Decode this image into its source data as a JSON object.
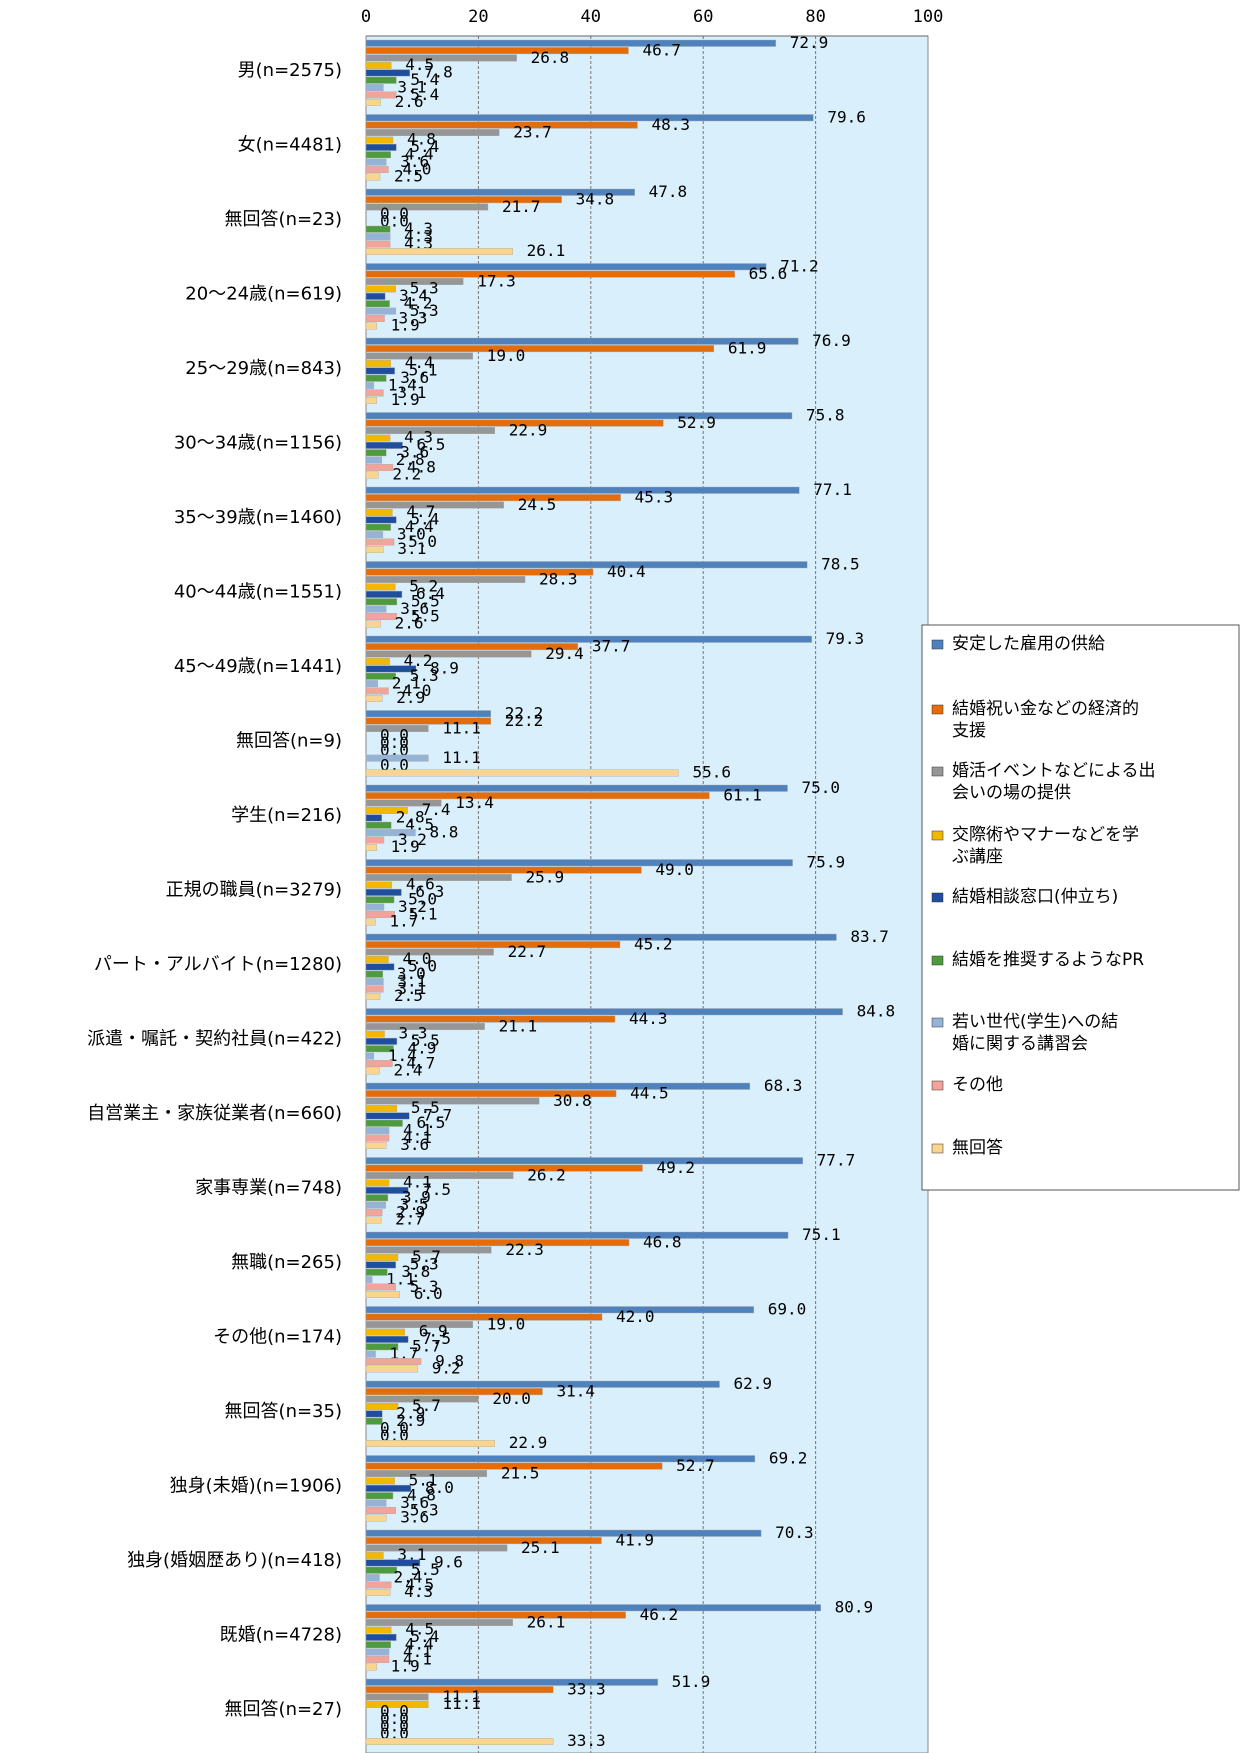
{
  "chart_data": {
    "type": "bar",
    "orientation": "horizontal",
    "xlim": [
      0,
      100
    ],
    "xticks": [
      "0",
      "20",
      "40",
      "60",
      "80",
      "100"
    ],
    "grid": true,
    "legend_position": "right",
    "categories": [
      "男(n=2575)",
      "女(n=4481)",
      "無回答(n=23)",
      "20～24歳(n=619)",
      "25～29歳(n=843)",
      "30～34歳(n=1156)",
      "35～39歳(n=1460)",
      "40～44歳(n=1551)",
      "45～49歳(n=1441)",
      "無回答(n=9)",
      "学生(n=216)",
      "正規の職員(n=3279)",
      "パート・アルバイト(n=1280)",
      "派遣・嘱託・契約社員(n=422)",
      "自営業主・家族従業者(n=660)",
      "家事専業(n=748)",
      "無職(n=265)",
      "その他(n=174)",
      "無回答(n=35)",
      "独身(未婚)(n=1906)",
      "独身(婚姻歴あり)(n=418)",
      "既婚(n=4728)",
      "無回答(n=27)"
    ],
    "series": [
      {
        "name": "安定した雇用の供給",
        "color": "#4F81BD",
        "values": [
          72.9,
          79.6,
          47.8,
          71.2,
          76.9,
          75.8,
          77.1,
          78.5,
          79.3,
          22.2,
          75.0,
          75.9,
          83.7,
          84.8,
          68.3,
          77.7,
          75.1,
          69.0,
          62.9,
          69.2,
          70.3,
          80.9,
          51.9
        ]
      },
      {
        "name": "結婚祝い金などの経済的支援",
        "color": "#E46C0A",
        "values": [
          46.7,
          48.3,
          34.8,
          65.6,
          61.9,
          52.9,
          45.3,
          40.4,
          37.7,
          22.2,
          61.1,
          49.0,
          45.2,
          44.3,
          44.5,
          49.2,
          46.8,
          42.0,
          31.4,
          52.7,
          41.9,
          46.2,
          33.3
        ]
      },
      {
        "name": "婚活イベントなどによる出会いの場の提供",
        "color": "#969696",
        "values": [
          26.8,
          23.7,
          21.7,
          17.3,
          19.0,
          22.9,
          24.5,
          28.3,
          29.4,
          11.1,
          13.4,
          25.9,
          22.7,
          21.1,
          30.8,
          26.2,
          22.3,
          19.0,
          20.0,
          21.5,
          25.1,
          26.1,
          11.1
        ]
      },
      {
        "name": "交際術やマナーなどを学ぶ講座",
        "color": "#F2B800",
        "values": [
          4.5,
          4.8,
          0.0,
          5.3,
          4.4,
          4.3,
          4.7,
          5.2,
          4.2,
          0.0,
          7.4,
          4.6,
          4.0,
          3.3,
          5.5,
          4.1,
          5.7,
          6.9,
          5.7,
          5.1,
          3.1,
          4.5,
          11.1
        ]
      },
      {
        "name": "結婚相談窓口(仲立ち)",
        "color": "#1F4E9E",
        "values": [
          7.8,
          5.4,
          0.0,
          3.4,
          5.1,
          6.5,
          5.4,
          6.4,
          8.9,
          0.0,
          2.8,
          6.3,
          5.0,
          5.5,
          7.7,
          7.5,
          5.3,
          7.5,
          2.9,
          8.0,
          9.6,
          5.4,
          0.0
        ]
      },
      {
        "name": "結婚を推奨するようなPR",
        "color": "#4E9A3E",
        "values": [
          5.4,
          4.4,
          4.3,
          4.2,
          3.6,
          3.6,
          4.4,
          5.5,
          5.3,
          0.0,
          4.5,
          5.0,
          3.0,
          4.9,
          6.5,
          3.9,
          3.8,
          5.7,
          2.9,
          4.8,
          5.5,
          4.4,
          0.0
        ]
      },
      {
        "name": "若い世代(学生)への結婚に関する講習会",
        "color": "#95B3D7",
        "values": [
          3.1,
          3.6,
          4.3,
          5.3,
          1.4,
          2.8,
          3.0,
          3.6,
          2.1,
          11.1,
          8.8,
          3.2,
          3.1,
          1.4,
          4.1,
          3.5,
          1.1,
          1.7,
          0.0,
          3.6,
          2.4,
          4.1,
          0.0
        ]
      },
      {
        "name": "その他",
        "color": "#F2A39A",
        "values": [
          5.4,
          4.0,
          4.3,
          3.3,
          3.1,
          4.8,
          5.0,
          5.5,
          4.0,
          0.0,
          3.2,
          5.1,
          3.1,
          4.7,
          4.1,
          2.9,
          5.3,
          9.8,
          0.0,
          5.3,
          4.5,
          4.1,
          0.0
        ]
      },
      {
        "name": "無回答",
        "color": "#FAD58F",
        "values": [
          2.6,
          2.5,
          26.1,
          1.9,
          1.9,
          2.2,
          3.1,
          2.6,
          2.9,
          55.6,
          1.9,
          1.7,
          2.5,
          2.4,
          3.6,
          2.7,
          6.0,
          9.2,
          22.9,
          3.6,
          4.3,
          1.9,
          33.3
        ]
      }
    ]
  },
  "legend": {
    "entries": [
      [
        "安定した雇用の供給"
      ],
      [
        "結婚祝い金などの経済的",
        "支援"
      ],
      [
        "婚活イベントなどによる出",
        "会いの場の提供"
      ],
      [
        "交際術やマナーなどを学",
        "ぶ講座"
      ],
      [
        "結婚相談窓口(仲立ち)"
      ],
      [
        "結婚を推奨するようなPR"
      ],
      [
        "若い世代(学生)への結",
        "婚に関する講習会"
      ],
      [
        "その他"
      ],
      [
        "無回答"
      ]
    ]
  }
}
